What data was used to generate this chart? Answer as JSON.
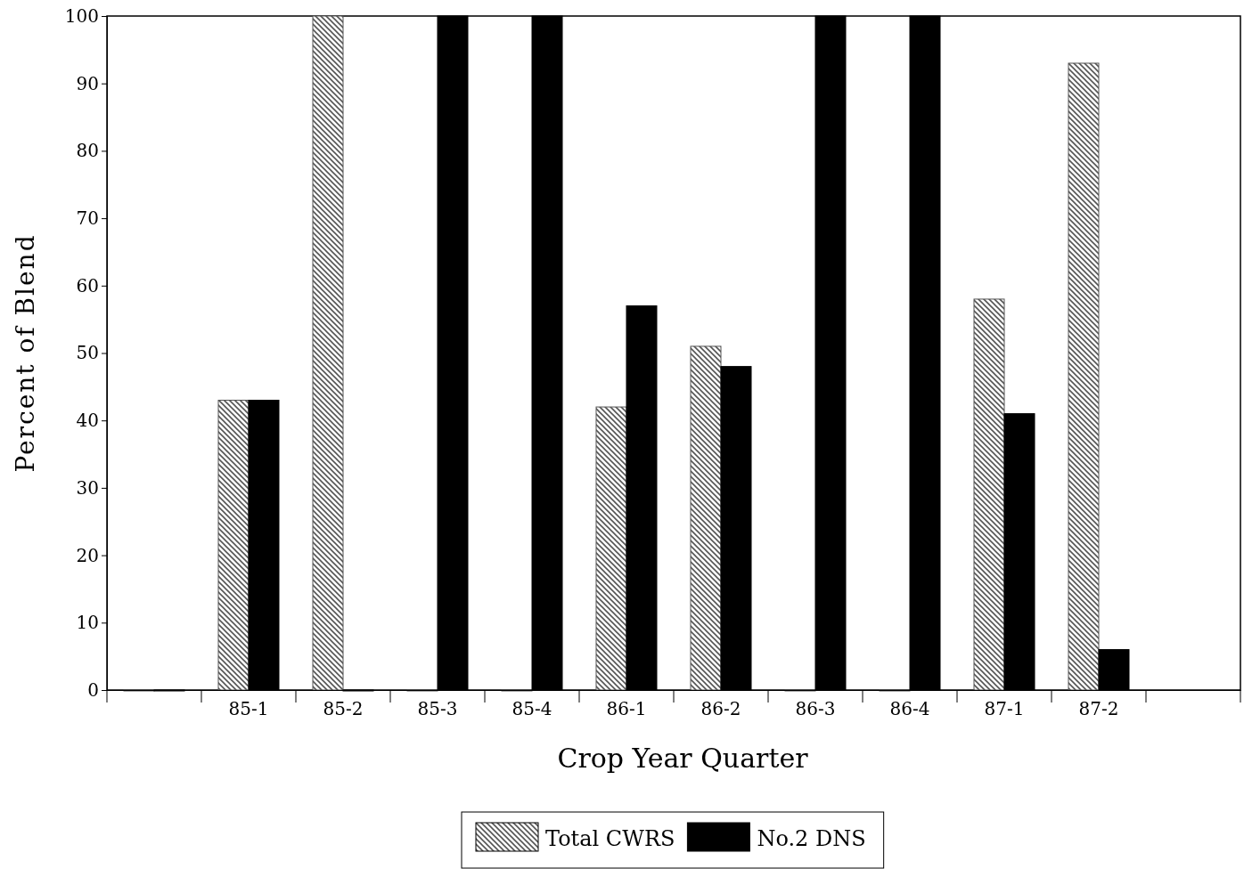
{
  "chart_data": {
    "type": "bar",
    "xlabel": "Crop Year Quarter",
    "ylabel": "Percent of Blend",
    "categories": [
      null,
      "85-1",
      "85-2",
      "85-3",
      "85-4",
      "86-1",
      "86-2",
      "86-3",
      "86-4",
      "87-1",
      "87-2",
      null
    ],
    "series": [
      {
        "name": "Total CWRS",
        "color": "#555555",
        "values": [
          0,
          43,
          100,
          0,
          0,
          42,
          51,
          0,
          0,
          58,
          93,
          null
        ]
      },
      {
        "name": "No.2 DNS",
        "color": "#000000",
        "values": [
          0,
          43,
          0,
          100,
          100,
          57,
          48,
          100,
          100,
          41,
          6,
          null
        ]
      }
    ],
    "ylim": [
      0,
      100
    ],
    "yticks": [
      0,
      10,
      20,
      30,
      40,
      50,
      60,
      70,
      80,
      90,
      100
    ],
    "legend": "bottom"
  }
}
